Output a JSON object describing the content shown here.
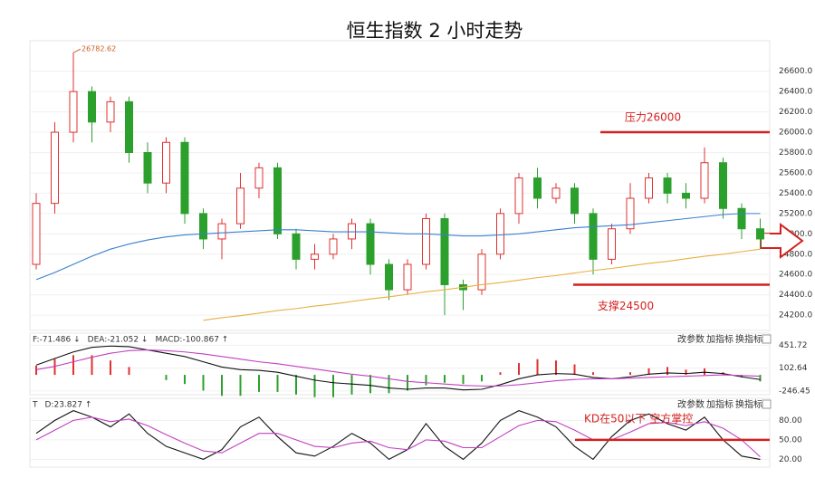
{
  "chart_data": [
    {
      "type": "candlestick",
      "title": "恒生指数 2 小时走势",
      "open": [
        24700,
        25300,
        26000,
        26400,
        26100,
        26300,
        25800,
        25500,
        25900,
        25200,
        24950,
        25100,
        25450,
        25650,
        25000,
        24750,
        24800,
        24950,
        25100,
        24700,
        24450,
        24700,
        25150,
        24500,
        24450,
        24800,
        25200,
        25550,
        25350,
        25450,
        25200,
        24750,
        25050,
        25350,
        25550,
        25400,
        25350,
        25700,
        25250,
        25050
      ],
      "high": [
        25400,
        26100,
        26782.62,
        26450,
        26350,
        26350,
        25900,
        25950,
        25950,
        25250,
        25150,
        25600,
        25700,
        25700,
        25050,
        24900,
        25000,
        25150,
        25150,
        24750,
        24750,
        25200,
        25200,
        24550,
        24850,
        25250,
        25600,
        25650,
        25500,
        25500,
        25250,
        25100,
        25500,
        25600,
        25600,
        25500,
        25850,
        25750,
        25300,
        25150
      ],
      "low": [
        24650,
        25200,
        25900,
        25900,
        26000,
        25700,
        25400,
        25400,
        25100,
        24850,
        24750,
        25050,
        25350,
        24950,
        24650,
        24650,
        24750,
        24850,
        24600,
        24350,
        24400,
        24650,
        24200,
        24250,
        24400,
        24750,
        25100,
        25250,
        25300,
        25100,
        24600,
        24700,
        25000,
        25300,
        25300,
        25250,
        25300,
        25150,
        24950,
        24850
      ],
      "close": [
        25300,
        26000,
        26400,
        26100,
        26300,
        25800,
        25500,
        25900,
        25200,
        24950,
        25100,
        25450,
        25650,
        25000,
        24750,
        24800,
        24950,
        25100,
        24700,
        24450,
        24700,
        25150,
        24500,
        24450,
        24800,
        25200,
        25550,
        25350,
        25450,
        25200,
        24750,
        25050,
        25350,
        25550,
        25400,
        25350,
        25700,
        25250,
        25050,
        24950
      ],
      "up_color": "#e03030",
      "down_color": "#2ca02c",
      "lines": [
        {
          "color": "#3a7fd0",
          "values": [
            24550,
            24620,
            24700,
            24780,
            24850,
            24900,
            24940,
            24970,
            24990,
            25000,
            25010,
            25020,
            25030,
            25040,
            25040,
            25030,
            25020,
            25020,
            25020,
            25010,
            25000,
            25000,
            24990,
            24980,
            24980,
            24990,
            25000,
            25020,
            25040,
            25060,
            25070,
            25080,
            25090,
            25110,
            25130,
            25150,
            25170,
            25190,
            25200,
            25200
          ]
        },
        {
          "color": "#e8b040",
          "values": [
            null,
            null,
            null,
            null,
            null,
            null,
            null,
            null,
            null,
            24150,
            24175,
            24195,
            24220,
            24245,
            24265,
            24290,
            24310,
            24335,
            24360,
            24380,
            24405,
            24430,
            24450,
            24475,
            24500,
            24520,
            24545,
            24570,
            24590,
            24615,
            24640,
            24660,
            24685,
            24710,
            24730,
            24755,
            24780,
            24800,
            24825,
            24850
          ]
        }
      ],
      "ylim": [
        24050,
        26900
      ],
      "yticks": [
        {
          "value": 24200,
          "label": "24200.0"
        },
        {
          "value": 24400,
          "label": "24400.0"
        },
        {
          "value": 24600,
          "label": "24600.0"
        },
        {
          "value": 24800,
          "label": "24800.0"
        },
        {
          "value": 25000,
          "label": "25000.0"
        },
        {
          "value": 25200,
          "label": "25200.0"
        },
        {
          "value": 25400,
          "label": "25400.0"
        },
        {
          "value": 25600,
          "label": "25600.0"
        },
        {
          "value": 25800,
          "label": "25800.0"
        },
        {
          "value": 26000,
          "label": "26000.0"
        },
        {
          "value": 26200,
          "label": "26200.0"
        },
        {
          "value": 26400,
          "label": "26400.0"
        },
        {
          "value": 26600,
          "label": "26600.0"
        }
      ],
      "annotations": [
        {
          "text": "压力26000",
          "value": 26000
        },
        {
          "text": "支撑24500",
          "value": 24500
        }
      ],
      "annotation_color": "#d42020"
    },
    {
      "type": "macd",
      "legend": [
        "F:-71.486 ↓",
        "DEA:-21.052 ↓",
        "MACD:-100.867 ↑"
      ],
      "buttons": [
        "改参数",
        "加指标",
        "换指标"
      ],
      "series": [
        {
          "color": "#111111",
          "values": [
            150,
            250,
            350,
            420,
            440,
            430,
            380,
            330,
            280,
            200,
            120,
            80,
            70,
            40,
            -20,
            -80,
            -120,
            -140,
            -160,
            -200,
            -220,
            -200,
            -200,
            -230,
            -220,
            -150,
            -60,
            0,
            20,
            10,
            -40,
            -60,
            -30,
            10,
            30,
            20,
            40,
            20,
            -30,
            -71.486
          ]
        },
        {
          "color": "#c040c0",
          "values": [
            80,
            130,
            200,
            270,
            330,
            370,
            380,
            370,
            350,
            320,
            280,
            240,
            200,
            170,
            130,
            90,
            50,
            10,
            -20,
            -60,
            -100,
            -120,
            -140,
            -160,
            -170,
            -170,
            -150,
            -120,
            -90,
            -70,
            -60,
            -60,
            -50,
            -40,
            -30,
            -20,
            -10,
            0,
            -10,
            -21.052
          ]
        }
      ],
      "bars": [
        140,
        240,
        300,
        300,
        220,
        120,
        0,
        -80,
        -140,
        -240,
        -320,
        -320,
        -260,
        -260,
        -300,
        -340,
        -340,
        -300,
        -280,
        -280,
        -240,
        -160,
        -120,
        -140,
        -100,
        40,
        180,
        240,
        220,
        160,
        40,
        0,
        40,
        100,
        120,
        80,
        100,
        40,
        -40,
        -100.867
      ],
      "up_color": "#e03030",
      "down_color": "#2ca02c",
      "ylim": [
        -303,
        637
      ],
      "yticks": [
        451.72,
        102.64,
        -246.45
      ]
    },
    {
      "type": "kd",
      "legend": [
        "T",
        "D:23.827 ↑"
      ],
      "buttons": [
        "改参数",
        "加指标",
        "换指标"
      ],
      "series": [
        {
          "color": "#111111",
          "values": [
            60,
            80,
            95,
            85,
            70,
            90,
            60,
            40,
            30,
            20,
            35,
            70,
            85,
            55,
            30,
            25,
            40,
            60,
            45,
            20,
            35,
            75,
            40,
            20,
            45,
            80,
            95,
            85,
            70,
            40,
            20,
            55,
            80,
            90,
            75,
            65,
            85,
            50,
            25,
            20
          ]
        },
        {
          "color": "#c040c0",
          "values": [
            50,
            65,
            80,
            85,
            78,
            82,
            72,
            58,
            45,
            33,
            30,
            45,
            60,
            60,
            50,
            40,
            38,
            45,
            48,
            38,
            35,
            50,
            48,
            38,
            38,
            55,
            72,
            80,
            78,
            65,
            50,
            50,
            62,
            75,
            77,
            72,
            78,
            68,
            50,
            23.827
          ]
        }
      ],
      "ylim": [
        8,
        114
      ],
      "yticks": [
        {
          "value": 80,
          "label": "80.00"
        },
        {
          "value": 50,
          "label": "50.00"
        },
        {
          "value": 20,
          "label": "20.00"
        }
      ],
      "annotations": [
        {
          "text": "KD在50以下 空方掌控",
          "value": 50
        }
      ],
      "annotation_color": "#d42020"
    }
  ]
}
